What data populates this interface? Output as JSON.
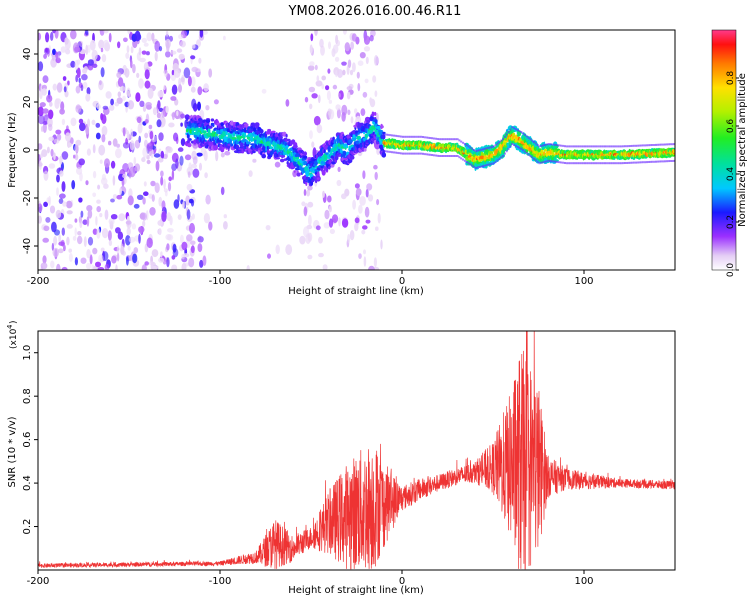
{
  "title": "YM08.2026.016.00.46.R11",
  "chart_data": [
    {
      "type": "heatmap",
      "xlabel": "Height of straight line (km)",
      "ylabel": "Frequency (Hz)",
      "xlim": [
        -200,
        150
      ],
      "ylim": [
        -50,
        50
      ],
      "x_ticks": [
        -200,
        -100,
        0,
        100
      ],
      "y_ticks": [
        -40,
        -20,
        0,
        20,
        40
      ],
      "colorbar": {
        "label": "Normalized spectral amplitude",
        "ticks": [
          "0.0",
          "0.2",
          "0.4",
          "0.6",
          "0.8"
        ],
        "range": [
          0,
          1
        ]
      },
      "ridge": {
        "x": [
          -115,
          -100,
          -90,
          -80,
          -75,
          -70,
          -65,
          -60,
          -55,
          -50,
          -45,
          -40,
          -35,
          -30,
          -25,
          -20,
          -15,
          -10,
          0,
          10,
          20,
          30,
          40,
          45,
          50,
          55,
          60,
          65,
          70,
          75,
          80,
          90,
          100,
          120,
          150
        ],
        "y": [
          8,
          6,
          5,
          5,
          3,
          2,
          1,
          -2,
          -6,
          -10,
          -5,
          -2,
          2,
          0,
          5,
          6,
          10,
          3,
          2,
          2,
          1,
          1,
          -4,
          -3,
          -2,
          1,
          6,
          4,
          1,
          -2,
          -1,
          -2,
          -2,
          -2,
          -1
        ]
      },
      "gap_x_range": [
        -105,
        -55
      ]
    },
    {
      "type": "line",
      "xlabel": "Height of straight line (km)",
      "ylabel": "SNR (10 * v/v)",
      "y_multiplier": "(x10",
      "y_multiplier_exp": "4",
      "xlim": [
        -200,
        150
      ],
      "ylim": [
        0,
        1.1
      ],
      "x_ticks": [
        -200,
        -100,
        0,
        100
      ],
      "y_ticks": [
        "0.2",
        "0.4",
        "0.6",
        "0.8",
        "1.0"
      ],
      "color": "#ee3333",
      "envelope": {
        "x": [
          -200,
          -100,
          -80,
          -70,
          -60,
          -50,
          -40,
          -30,
          -20,
          -15,
          -10,
          0,
          10,
          20,
          30,
          40,
          50,
          60,
          65,
          70,
          75,
          80,
          90,
          100,
          120,
          150
        ],
        "base": [
          0.02,
          0.03,
          0.06,
          0.12,
          0.1,
          0.15,
          0.22,
          0.25,
          0.28,
          0.3,
          0.3,
          0.33,
          0.37,
          0.4,
          0.43,
          0.45,
          0.47,
          0.48,
          0.48,
          0.48,
          0.47,
          0.43,
          0.42,
          0.41,
          0.4,
          0.39
        ],
        "amplitude": [
          0.01,
          0.01,
          0.03,
          0.12,
          0.06,
          0.05,
          0.15,
          0.25,
          0.3,
          0.3,
          0.2,
          0.06,
          0.05,
          0.04,
          0.04,
          0.05,
          0.12,
          0.35,
          0.55,
          0.5,
          0.4,
          0.1,
          0.05,
          0.04,
          0.02,
          0.02
        ]
      }
    }
  ]
}
